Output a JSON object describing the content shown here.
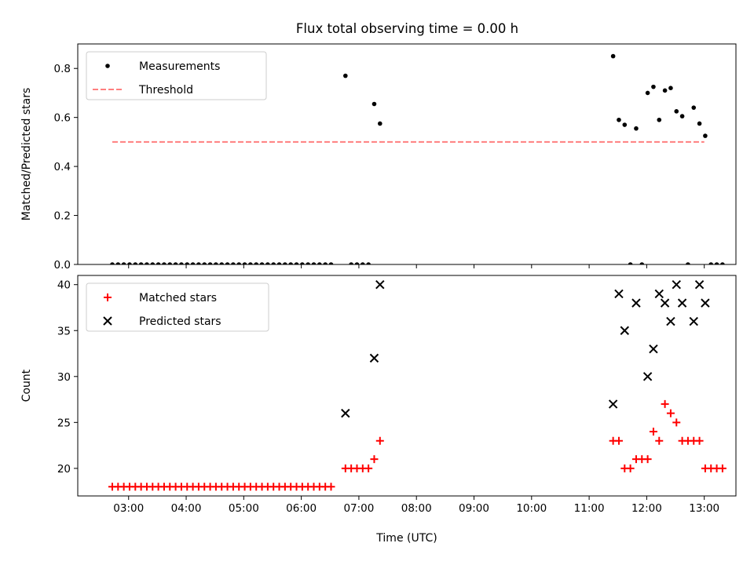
{
  "figure": {
    "title": "Flux total observing time = 0.00 h"
  },
  "chart_data": [
    {
      "type": "scatter",
      "title": "Flux total observing time = 0.00 h",
      "xlabel": "",
      "ylabel": "Matched/Predicted stars",
      "xlim": [
        "02:07",
        "13:33"
      ],
      "ylim": [
        0,
        0.9
      ],
      "x_ticks": [
        "03:00",
        "04:00",
        "05:00",
        "06:00",
        "07:00",
        "08:00",
        "09:00",
        "10:00",
        "11:00",
        "12:00",
        "13:00"
      ],
      "y_ticks": [
        "0.0",
        "0.2",
        "0.4",
        "0.6",
        "0.8"
      ],
      "legend": {
        "placement": "top-left",
        "entries": [
          "Measurements",
          "Threshold"
        ]
      },
      "series": [
        {
          "name": "Measurements",
          "marker": "dot",
          "color": "#000000",
          "points": [
            [
              "02:43",
              0
            ],
            [
              "02:49",
              0
            ],
            [
              "02:55",
              0
            ],
            [
              "03:01",
              0
            ],
            [
              "03:07",
              0
            ],
            [
              "03:13",
              0
            ],
            [
              "03:19",
              0
            ],
            [
              "03:25",
              0
            ],
            [
              "03:31",
              0
            ],
            [
              "03:37",
              0
            ],
            [
              "03:43",
              0
            ],
            [
              "03:49",
              0
            ],
            [
              "03:55",
              0
            ],
            [
              "04:01",
              0
            ],
            [
              "04:07",
              0
            ],
            [
              "04:13",
              0
            ],
            [
              "04:19",
              0
            ],
            [
              "04:25",
              0
            ],
            [
              "04:31",
              0
            ],
            [
              "04:37",
              0
            ],
            [
              "04:43",
              0
            ],
            [
              "04:49",
              0
            ],
            [
              "04:55",
              0
            ],
            [
              "05:01",
              0
            ],
            [
              "05:07",
              0
            ],
            [
              "05:13",
              0
            ],
            [
              "05:19",
              0
            ],
            [
              "05:25",
              0
            ],
            [
              "05:31",
              0
            ],
            [
              "05:37",
              0
            ],
            [
              "05:43",
              0
            ],
            [
              "05:49",
              0
            ],
            [
              "05:55",
              0
            ],
            [
              "06:01",
              0
            ],
            [
              "06:07",
              0
            ],
            [
              "06:13",
              0
            ],
            [
              "06:19",
              0
            ],
            [
              "06:25",
              0
            ],
            [
              "06:31",
              0
            ],
            [
              "06:46",
              0.77
            ],
            [
              "06:52",
              0
            ],
            [
              "06:58",
              0
            ],
            [
              "07:04",
              0
            ],
            [
              "07:10",
              0
            ],
            [
              "07:16",
              0.655
            ],
            [
              "07:22",
              0.575
            ],
            [
              "11:25",
              0.85
            ],
            [
              "11:31",
              0.59
            ],
            [
              "11:37",
              0.57
            ],
            [
              "11:43",
              0
            ],
            [
              "11:49",
              0.555
            ],
            [
              "11:55",
              0
            ],
            [
              "12:01",
              0.7
            ],
            [
              "12:07",
              0.725
            ],
            [
              "12:13",
              0.59
            ],
            [
              "12:19",
              0.71
            ],
            [
              "12:25",
              0.72
            ],
            [
              "12:31",
              0.625
            ],
            [
              "12:37",
              0.605
            ],
            [
              "12:43",
              0
            ],
            [
              "12:49",
              0.64
            ],
            [
              "12:55",
              0.575
            ],
            [
              "13:01",
              0.525
            ],
            [
              "13:07",
              0
            ],
            [
              "13:13",
              0
            ],
            [
              "13:19",
              0
            ]
          ]
        },
        {
          "name": "Threshold",
          "style": "dashed",
          "color": "#ff7f7f",
          "points": [
            [
              "02:43",
              0.5
            ],
            [
              "13:00",
              0.5
            ]
          ]
        }
      ]
    },
    {
      "type": "scatter",
      "title": "",
      "xlabel": "Time (UTC)",
      "ylabel": "Count",
      "xlim": [
        "02:07",
        "13:33"
      ],
      "ylim": [
        17,
        41
      ],
      "x_ticks": [
        "03:00",
        "04:00",
        "05:00",
        "06:00",
        "07:00",
        "08:00",
        "09:00",
        "10:00",
        "11:00",
        "12:00",
        "13:00"
      ],
      "y_ticks": [
        "20",
        "25",
        "30",
        "35",
        "40"
      ],
      "legend": {
        "placement": "top-left",
        "entries": [
          "Matched stars",
          "Predicted stars"
        ]
      },
      "series": [
        {
          "name": "Matched stars",
          "marker": "plus",
          "color": "#ff0000",
          "points": [
            [
              "02:43",
              18
            ],
            [
              "02:49",
              18
            ],
            [
              "02:55",
              18
            ],
            [
              "03:01",
              18
            ],
            [
              "03:07",
              18
            ],
            [
              "03:13",
              18
            ],
            [
              "03:19",
              18
            ],
            [
              "03:25",
              18
            ],
            [
              "03:31",
              18
            ],
            [
              "03:37",
              18
            ],
            [
              "03:43",
              18
            ],
            [
              "03:49",
              18
            ],
            [
              "03:55",
              18
            ],
            [
              "04:01",
              18
            ],
            [
              "04:07",
              18
            ],
            [
              "04:13",
              18
            ],
            [
              "04:19",
              18
            ],
            [
              "04:25",
              18
            ],
            [
              "04:31",
              18
            ],
            [
              "04:37",
              18
            ],
            [
              "04:43",
              18
            ],
            [
              "04:49",
              18
            ],
            [
              "04:55",
              18
            ],
            [
              "05:01",
              18
            ],
            [
              "05:07",
              18
            ],
            [
              "05:13",
              18
            ],
            [
              "05:19",
              18
            ],
            [
              "05:25",
              18
            ],
            [
              "05:31",
              18
            ],
            [
              "05:37",
              18
            ],
            [
              "05:43",
              18
            ],
            [
              "05:49",
              18
            ],
            [
              "05:55",
              18
            ],
            [
              "06:01",
              18
            ],
            [
              "06:07",
              18
            ],
            [
              "06:13",
              18
            ],
            [
              "06:19",
              18
            ],
            [
              "06:25",
              18
            ],
            [
              "06:31",
              18
            ],
            [
              "06:46",
              20
            ],
            [
              "06:52",
              20
            ],
            [
              "06:58",
              20
            ],
            [
              "07:04",
              20
            ],
            [
              "07:10",
              20
            ],
            [
              "07:16",
              21
            ],
            [
              "07:22",
              23
            ],
            [
              "11:25",
              23
            ],
            [
              "11:31",
              23
            ],
            [
              "11:37",
              20
            ],
            [
              "11:43",
              20
            ],
            [
              "11:49",
              21
            ],
            [
              "11:55",
              21
            ],
            [
              "12:01",
              21
            ],
            [
              "12:07",
              24
            ],
            [
              "12:13",
              23
            ],
            [
              "12:19",
              27
            ],
            [
              "12:25",
              26
            ],
            [
              "12:31",
              25
            ],
            [
              "12:37",
              23
            ],
            [
              "12:43",
              23
            ],
            [
              "12:49",
              23
            ],
            [
              "12:55",
              23
            ],
            [
              "13:01",
              20
            ],
            [
              "13:07",
              20
            ],
            [
              "13:13",
              20
            ],
            [
              "13:19",
              20
            ]
          ]
        },
        {
          "name": "Predicted stars",
          "marker": "x",
          "color": "#000000",
          "points": [
            [
              "06:46",
              26
            ],
            [
              "07:16",
              32
            ],
            [
              "07:22",
              40
            ],
            [
              "11:25",
              27
            ],
            [
              "11:31",
              39
            ],
            [
              "11:37",
              35
            ],
            [
              "11:49",
              38
            ],
            [
              "12:01",
              30
            ],
            [
              "12:07",
              33
            ],
            [
              "12:13",
              39
            ],
            [
              "12:19",
              38
            ],
            [
              "12:25",
              36
            ],
            [
              "12:31",
              40
            ],
            [
              "12:37",
              38
            ],
            [
              "12:49",
              36
            ],
            [
              "12:55",
              40
            ],
            [
              "13:01",
              38
            ]
          ]
        }
      ]
    }
  ]
}
